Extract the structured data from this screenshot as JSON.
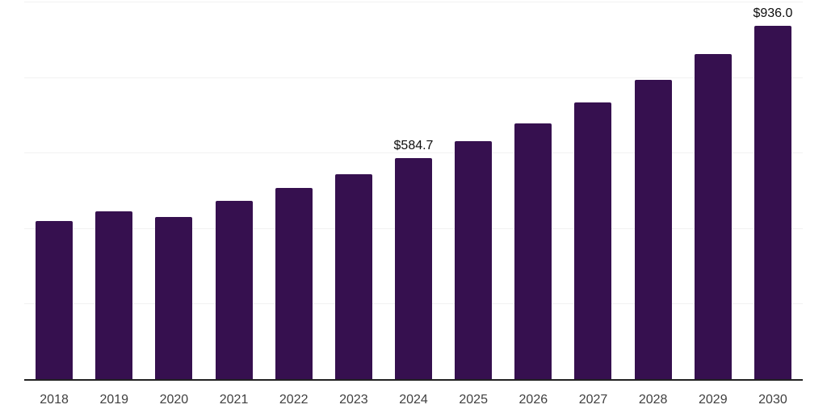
{
  "page": {
    "background_color": "#ffffff"
  },
  "chart_data": {
    "type": "bar",
    "title": "",
    "xlabel": "",
    "ylabel": "",
    "categories": [
      "2018",
      "2019",
      "2020",
      "2021",
      "2022",
      "2023",
      "2024",
      "2025",
      "2026",
      "2027",
      "2028",
      "2029",
      "2030"
    ],
    "values": [
      419,
      445,
      430,
      473,
      507,
      543,
      584.7,
      630,
      677,
      733,
      792,
      861,
      936
    ],
    "bar_labels": [
      "",
      "",
      "",
      "",
      "",
      "",
      "$584.7",
      "",
      "",
      "",
      "",
      "",
      "$936.0"
    ],
    "ylim": [
      0,
      1000
    ],
    "gridline_values": [
      200,
      400,
      600,
      800,
      1000
    ],
    "grid": true,
    "legend": false,
    "y_axis_tick_labels_visible": false,
    "bar_color": "#36104F",
    "axis_color": "#222222",
    "gridline_color": "#f2f2f2",
    "tick_label_color": "#404040",
    "value_label_color": "#0d0d0d"
  }
}
